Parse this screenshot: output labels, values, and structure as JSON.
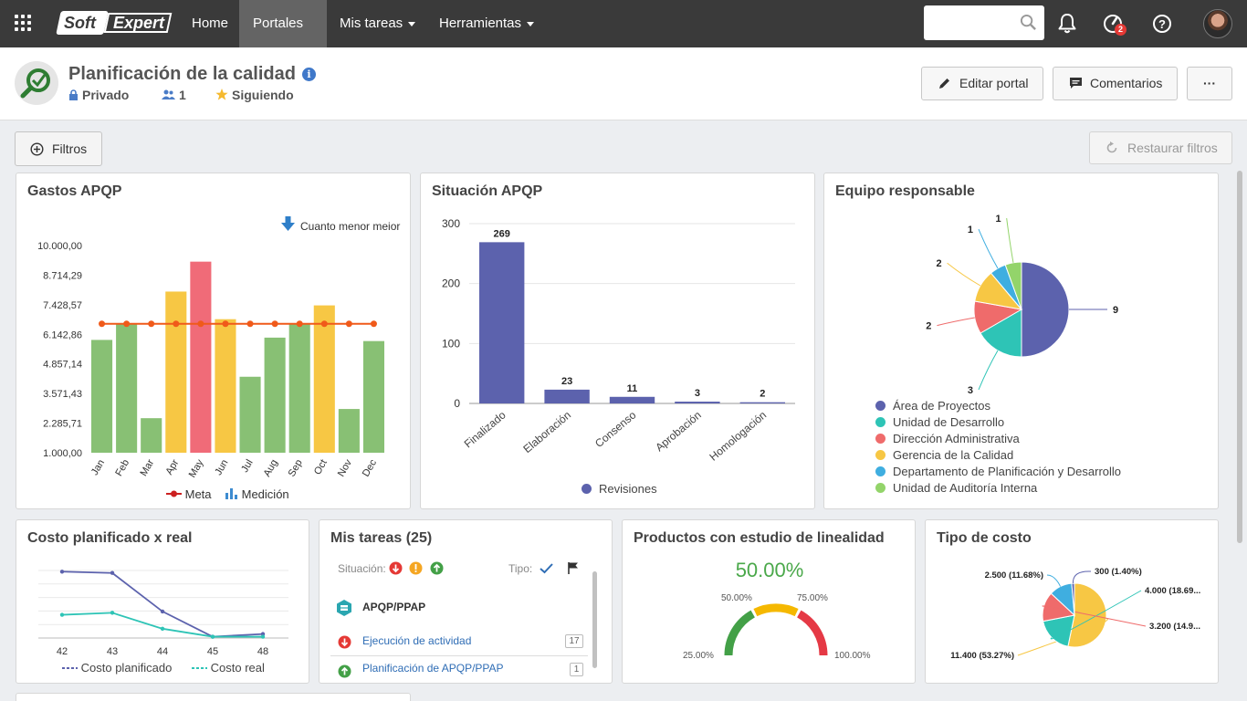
{
  "nav": {
    "logo_left": "Soft",
    "logo_right": "Expert",
    "home": "Home",
    "portales": "Portales",
    "mis_tareas": "Mis tareas",
    "herramientas": "Herramientas",
    "search_placeholder": "",
    "notification_badge": "2"
  },
  "header": {
    "title": "Planificación de la calidad",
    "privacy": "Privado",
    "members": "1",
    "following": "Siguiendo",
    "edit_btn": "Editar portal",
    "comments_btn": "Comentarios",
    "more_btn": "···"
  },
  "filters": {
    "label": "Filtros",
    "restore": "Restaurar filtros"
  },
  "gastos": {
    "title": "Gastos APQP",
    "note": "Cuanto menor meior",
    "legend_meta": "Meta",
    "legend_medicion": "Medición"
  },
  "situacion": {
    "title": "Situación APQP",
    "legend": "Revisiones"
  },
  "equipo": {
    "title": "Equipo responsable"
  },
  "costo": {
    "title": "Costo planificado x real",
    "legend_plan": "Costo planificado",
    "legend_real": "Costo real"
  },
  "tareas": {
    "title": "Mis tareas (25)",
    "situacion_label": "Situación:",
    "tipo_label": "Tipo:",
    "group": "APQP/PPAP",
    "items": [
      {
        "label": "Ejecución de actividad",
        "count": "17"
      },
      {
        "label": "Planificación de APQP/PPAP",
        "count": "1"
      }
    ]
  },
  "linealidad": {
    "title": "Productos con estudio de linealidad",
    "value": "50.00%",
    "t0": "25.00%",
    "t1": "50.00%",
    "t2": "75.00%",
    "t3": "100.00%"
  },
  "tipo_costo": {
    "title": "Tipo de costo"
  },
  "chart_data": [
    {
      "type": "bar",
      "title": "Gastos APQP",
      "categories": [
        "Jan",
        "Feb",
        "Mar",
        "Apr",
        "May",
        "Jun",
        "Jul",
        "Aug",
        "Sep",
        "Oct",
        "Nov",
        "Dec"
      ],
      "ytick_labels": [
        "1.000,00",
        "2.285,71",
        "3.571,43",
        "4.857,14",
        "6.142,86",
        "7.428,57",
        "8.714,29",
        "10.000,00"
      ],
      "ylim": [
        1000,
        10000
      ],
      "series": [
        {
          "name": "Medición",
          "values": [
            5900,
            6600,
            2500,
            8000,
            9300,
            6800,
            4300,
            6000,
            6600,
            7400,
            2900,
            5850
          ],
          "colors": [
            "#88c074",
            "#88c074",
            "#88c074",
            "#f7c744",
            "#f06b78",
            "#f7c744",
            "#88c074",
            "#88c074",
            "#88c074",
            "#f7c744",
            "#88c074",
            "#88c074"
          ]
        },
        {
          "name": "Meta",
          "values": [
            6600,
            6600,
            6600,
            6600,
            6600,
            6600,
            6600,
            6600,
            6600,
            6600,
            6600,
            6600
          ],
          "color": "#f05a1a"
        }
      ]
    },
    {
      "type": "bar",
      "title": "Situación APQP",
      "categories": [
        "Finalizado",
        "Elaboración",
        "Consenso",
        "Aprobación",
        "Homologación"
      ],
      "series": [
        {
          "name": "Revisiones",
          "values": [
            269,
            23,
            11,
            3,
            2
          ]
        }
      ],
      "yticks": [
        0,
        100,
        200,
        300
      ],
      "ylim": [
        0,
        300
      ],
      "color": "#5c62ad"
    },
    {
      "type": "pie",
      "title": "Equipo responsable",
      "labels": [
        "Área de Proyectos",
        "Unidad de Desarrollo",
        "Dirección Administrativa",
        "Gerencia de la Calidad",
        "Departamento de Planificación y Desarrollo",
        "Unidad de Auditoría Interna"
      ],
      "values": [
        9,
        3,
        2,
        2,
        1,
        1
      ],
      "colors": [
        "#5c62ad",
        "#2ec4b6",
        "#ef6b6b",
        "#f7c744",
        "#3faee0",
        "#93d46a"
      ]
    },
    {
      "type": "line",
      "title": "Costo planificado x real",
      "x": [
        "42",
        "43",
        "44",
        "45",
        "48"
      ],
      "series": [
        {
          "name": "Costo planificado",
          "values": [
            100,
            98,
            40,
            2,
            6
          ],
          "color": "#5c62ad"
        },
        {
          "name": "Costo real",
          "values": [
            35,
            38,
            14,
            2,
            2
          ],
          "color": "#2ec4b6"
        }
      ]
    },
    {
      "type": "pie",
      "title": "Tipo de costo",
      "labels": [
        "11.400 (53.27%)",
        "4.000 (18.69...",
        "3.200 (14.9...",
        "2.500 (11.68%)",
        "300 (1.40%)"
      ],
      "values": [
        11400,
        4000,
        3200,
        2500,
        300
      ],
      "colors": [
        "#f7c744",
        "#2ec4b6",
        "#ef6b6b",
        "#3faee0",
        "#5c62ad"
      ]
    }
  ]
}
